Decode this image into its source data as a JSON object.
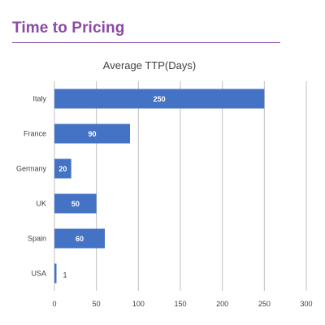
{
  "page": {
    "title": "Time to Pricing"
  },
  "colors": {
    "title": "#8a4aa6",
    "bar": "#4472c4",
    "grid": "#bfbfbf"
  },
  "chart_data": {
    "type": "bar",
    "orientation": "horizontal",
    "title": "Average TTP(Days)",
    "xlabel": "",
    "ylabel": "",
    "categories": [
      "Italy",
      "France",
      "Germany",
      "UK",
      "Spain",
      "USA"
    ],
    "values": [
      250,
      90,
      20,
      50,
      60,
      1
    ],
    "xlim": [
      0,
      300
    ],
    "xticks": [
      0,
      50,
      100,
      150,
      200,
      250,
      300
    ],
    "grid": "vertical",
    "legend": "none"
  }
}
